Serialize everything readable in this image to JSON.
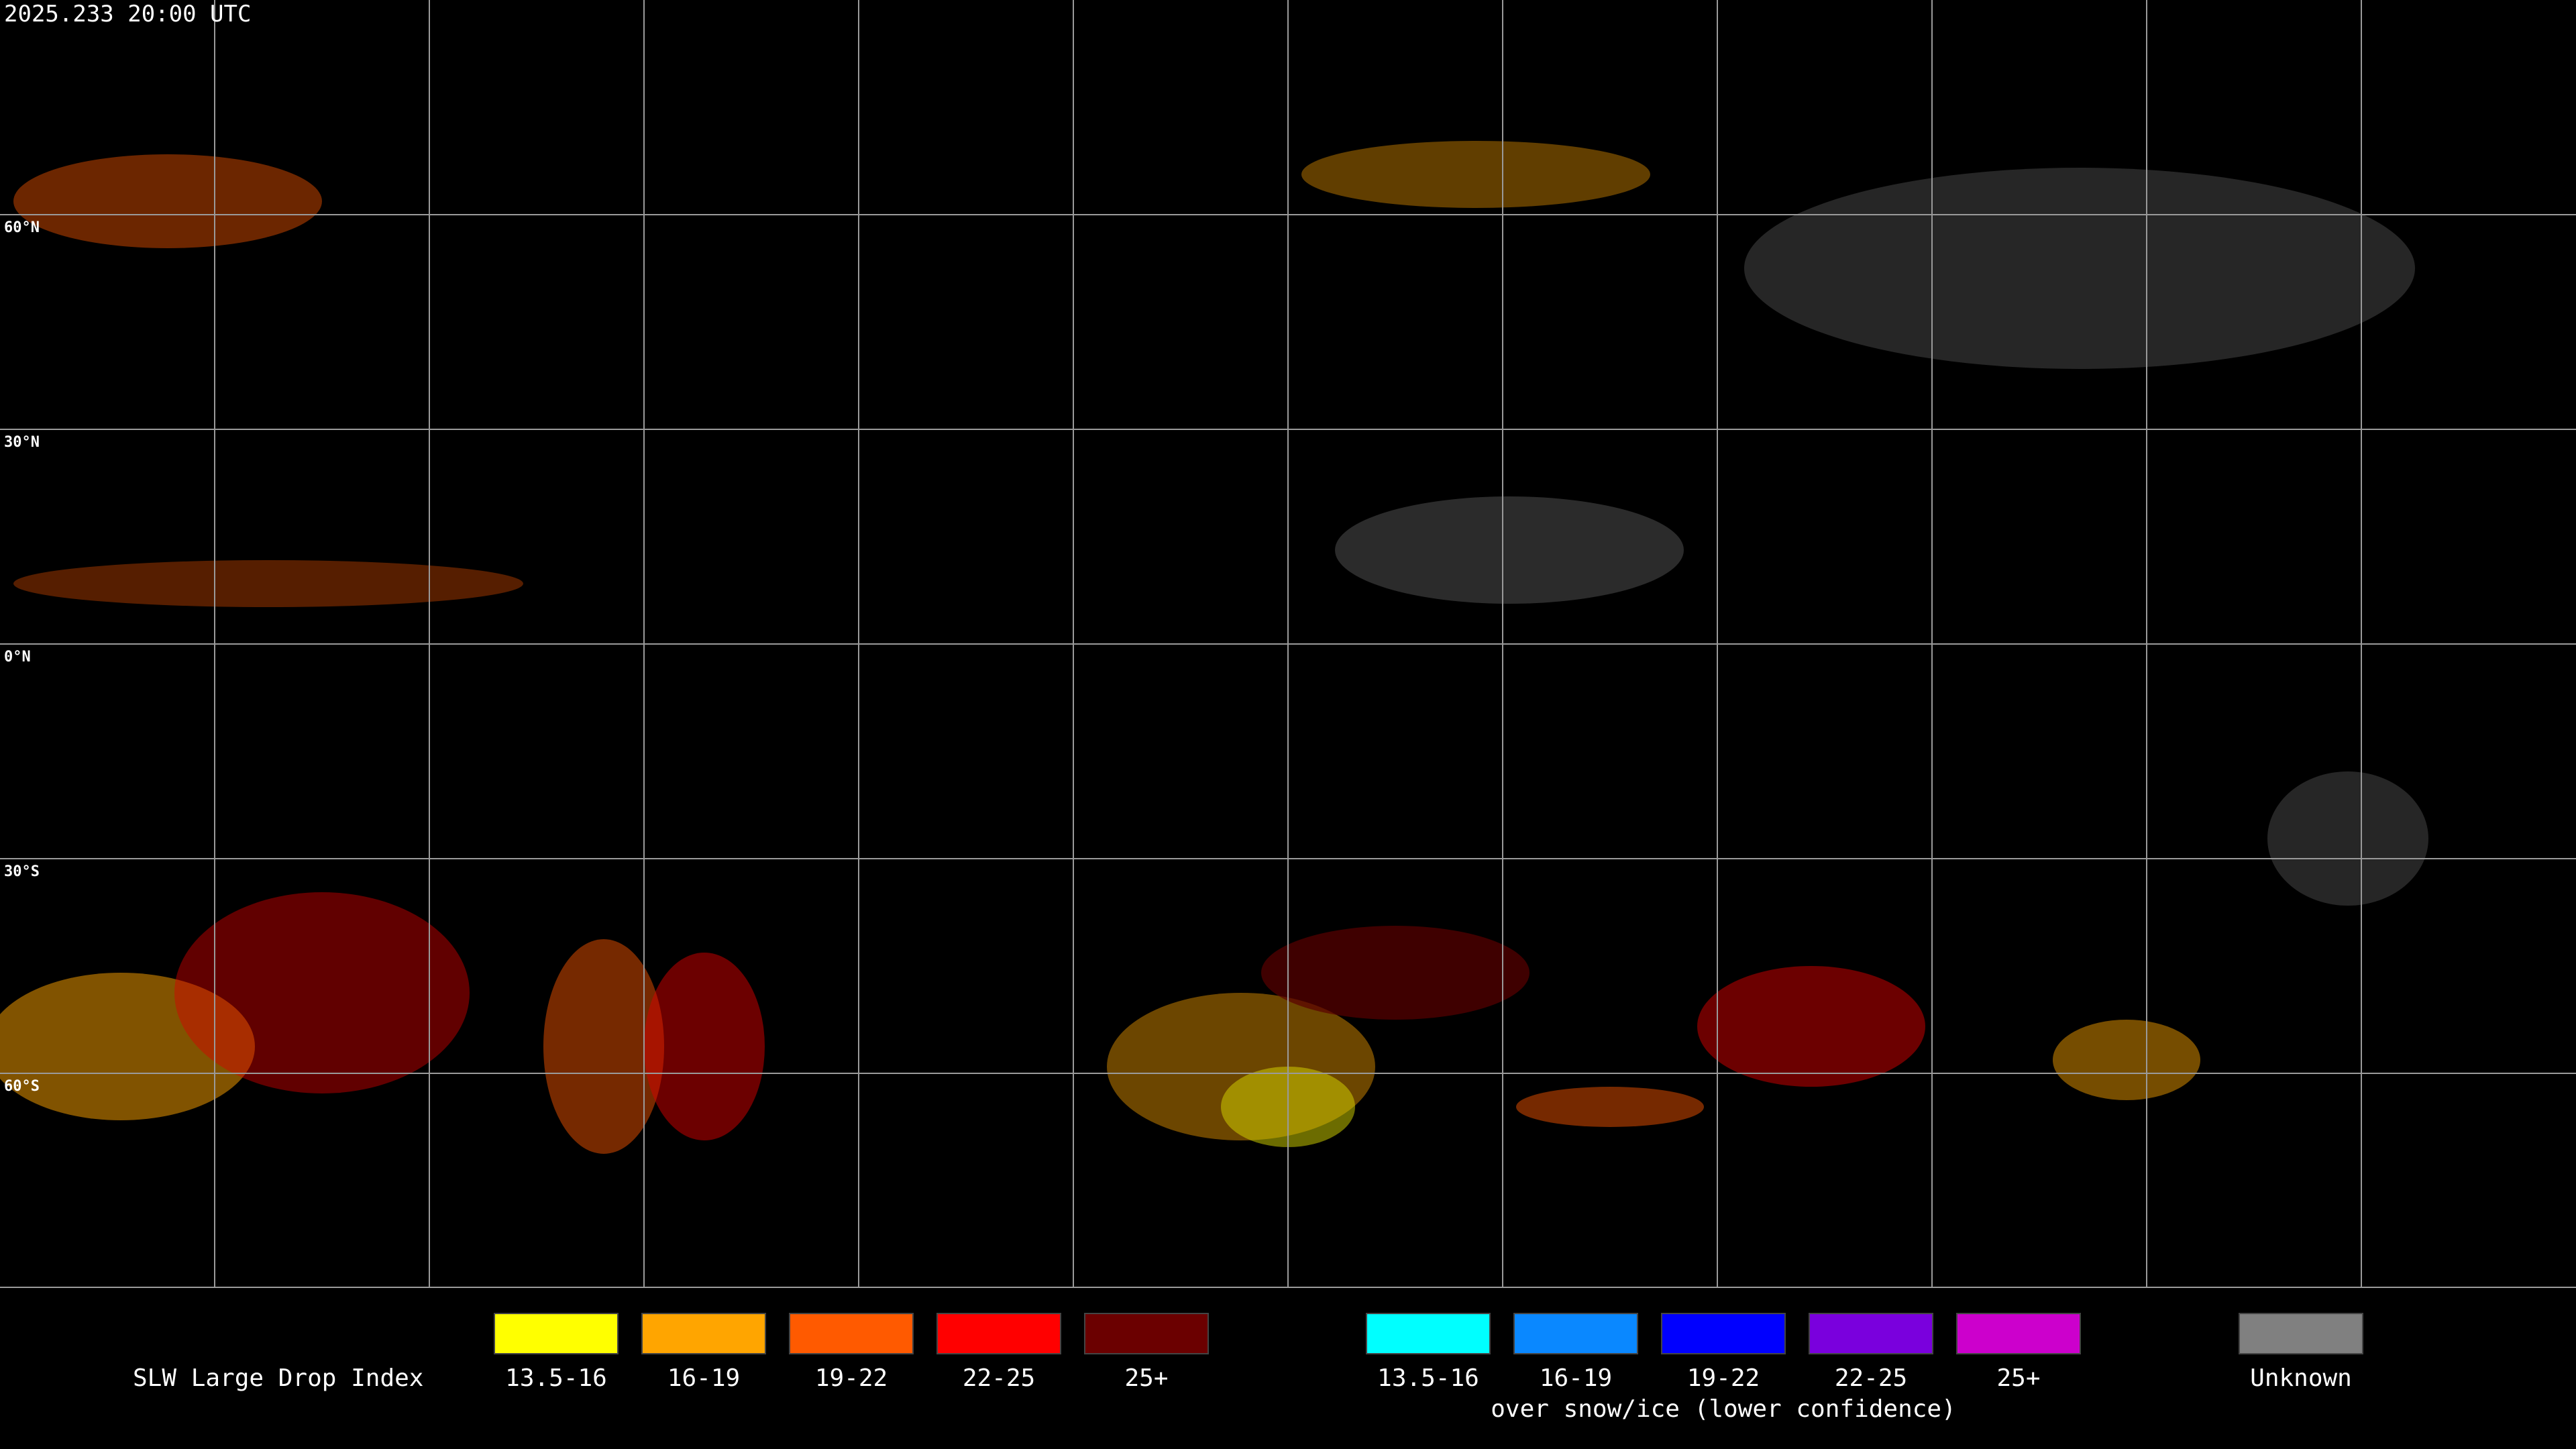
{
  "timestamp": "2025.233 20:00 UTC",
  "map": {
    "latitude_labels": [
      "60°N",
      "30°N",
      "0°N",
      "30°S",
      "60°S"
    ]
  },
  "legend": {
    "title": "SLW Large Drop Index",
    "groups": [
      {
        "items": [
          {
            "label": "13.5-16",
            "color": "#ffff00"
          },
          {
            "label": "16-19",
            "color": "#ffa500"
          },
          {
            "label": "19-22",
            "color": "#ff5a00"
          },
          {
            "label": "22-25",
            "color": "#ff0000"
          },
          {
            "label": "25+",
            "color": "#6b0000"
          }
        ]
      },
      {
        "items": [
          {
            "label": "13.5-16",
            "color": "#00ffff"
          },
          {
            "label": "16-19",
            "color": "#0a88ff"
          },
          {
            "label": "19-22",
            "color": "#0000ff"
          },
          {
            "label": "22-25",
            "color": "#7a00dd"
          },
          {
            "label": "25+",
            "color": "#cc00cc"
          }
        ],
        "caption": "over snow/ice (lower confidence)"
      },
      {
        "items": [
          {
            "label": "Unknown",
            "color": "#808080"
          }
        ]
      }
    ]
  }
}
